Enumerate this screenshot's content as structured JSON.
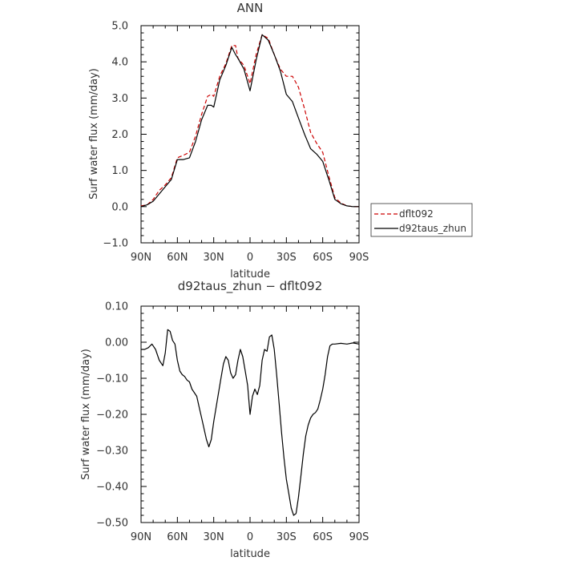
{
  "chart_data": [
    {
      "type": "line",
      "title": "ANN",
      "xlabel": "latitude",
      "ylabel": "Surf water flux (mm/day)",
      "x_ticks": [
        "90N",
        "60N",
        "30N",
        "0",
        "30S",
        "60S",
        "90S"
      ],
      "y_ticks": [
        "5.0",
        "4.0",
        "3.0",
        "2.0",
        "1.0",
        "0.0",
        "−1.0"
      ],
      "xlim": [
        90,
        -90
      ],
      "ylim": [
        -1.0,
        5.0
      ],
      "grid": false,
      "legend_position": "outside-right",
      "series": [
        {
          "name": "dflt092",
          "color": "#cc0000",
          "style": "dashed",
          "x": [
            90,
            85,
            80,
            75,
            70,
            65,
            60,
            55,
            50,
            45,
            40,
            35,
            32,
            30,
            25,
            20,
            15,
            12,
            10,
            5,
            0,
            -5,
            -10,
            -15,
            -20,
            -25,
            -30,
            -35,
            -40,
            -45,
            -50,
            -55,
            -60,
            -65,
            -70,
            -75,
            -80,
            -85,
            -90
          ],
          "values": [
            0.02,
            0.05,
            0.2,
            0.45,
            0.6,
            0.8,
            1.35,
            1.42,
            1.5,
            1.95,
            2.55,
            3.05,
            3.1,
            3.05,
            3.6,
            3.95,
            4.45,
            4.45,
            4.1,
            3.9,
            3.4,
            4.2,
            4.75,
            4.65,
            4.2,
            3.8,
            3.6,
            3.6,
            3.3,
            2.7,
            2.05,
            1.75,
            1.5,
            0.85,
            0.25,
            0.1,
            0.02,
            0.0,
            0.0
          ]
        },
        {
          "name": "d92taus_zhun",
          "color": "#000000",
          "style": "solid",
          "x": [
            90,
            85,
            80,
            75,
            70,
            65,
            60,
            55,
            50,
            45,
            40,
            35,
            32,
            30,
            25,
            20,
            15,
            12,
            10,
            5,
            0,
            -5,
            -10,
            -15,
            -20,
            -25,
            -30,
            -35,
            -40,
            -45,
            -50,
            -55,
            -60,
            -65,
            -70,
            -75,
            -80,
            -85,
            -90
          ],
          "values": [
            0.0,
            0.05,
            0.15,
            0.35,
            0.55,
            0.75,
            1.3,
            1.3,
            1.35,
            1.8,
            2.4,
            2.8,
            2.8,
            2.75,
            3.5,
            3.9,
            4.4,
            4.2,
            4.1,
            3.8,
            3.2,
            4.05,
            4.75,
            4.6,
            4.2,
            3.75,
            3.1,
            2.9,
            2.45,
            2.0,
            1.6,
            1.45,
            1.25,
            0.75,
            0.2,
            0.08,
            0.02,
            0.0,
            0.0
          ]
        }
      ]
    },
    {
      "type": "line",
      "title": "d92taus_zhun − dflt092",
      "xlabel": "latitude",
      "ylabel": "Surf water flux (mm/day)",
      "x_ticks": [
        "90N",
        "60N",
        "30N",
        "0",
        "30S",
        "60S",
        "90S"
      ],
      "y_ticks": [
        "0.10",
        "0.00",
        "−0.10",
        "−0.20",
        "−0.30",
        "−0.40",
        "−0.50"
      ],
      "xlim": [
        90,
        -90
      ],
      "ylim": [
        -0.5,
        0.1
      ],
      "grid": false,
      "series": [
        {
          "color": "#000000",
          "style": "solid",
          "x": [
            90,
            87,
            84,
            81,
            78,
            75,
            72,
            70,
            68,
            66,
            64,
            62,
            60,
            58,
            56,
            54,
            52,
            50,
            48,
            46,
            44,
            42,
            40,
            38,
            36,
            34,
            32,
            30,
            28,
            26,
            24,
            22,
            20,
            18,
            16,
            14,
            12,
            10,
            8,
            6,
            4,
            2,
            0,
            -2,
            -4,
            -6,
            -8,
            -10,
            -12,
            -14,
            -16,
            -18,
            -20,
            -22,
            -24,
            -26,
            -28,
            -30,
            -32,
            -34,
            -36,
            -38,
            -40,
            -42,
            -44,
            -46,
            -48,
            -50,
            -52,
            -54,
            -56,
            -58,
            -60,
            -62,
            -64,
            -66,
            -68,
            -70,
            -75,
            -80,
            -85,
            -90
          ],
          "values": [
            -0.02,
            -0.02,
            -0.015,
            -0.005,
            -0.02,
            -0.05,
            -0.065,
            -0.03,
            0.035,
            0.03,
            0.005,
            -0.005,
            -0.05,
            -0.08,
            -0.09,
            -0.095,
            -0.105,
            -0.11,
            -0.13,
            -0.14,
            -0.15,
            -0.18,
            -0.21,
            -0.24,
            -0.27,
            -0.29,
            -0.27,
            -0.22,
            -0.18,
            -0.14,
            -0.1,
            -0.06,
            -0.04,
            -0.05,
            -0.085,
            -0.1,
            -0.09,
            -0.05,
            -0.02,
            -0.04,
            -0.08,
            -0.12,
            -0.2,
            -0.15,
            -0.13,
            -0.145,
            -0.12,
            -0.05,
            -0.02,
            -0.025,
            0.015,
            0.02,
            -0.02,
            -0.09,
            -0.17,
            -0.25,
            -0.32,
            -0.38,
            -0.42,
            -0.46,
            -0.48,
            -0.475,
            -0.43,
            -0.37,
            -0.31,
            -0.26,
            -0.23,
            -0.21,
            -0.2,
            -0.195,
            -0.185,
            -0.16,
            -0.13,
            -0.09,
            -0.04,
            -0.01,
            -0.005,
            -0.005,
            -0.003,
            -0.005,
            -0.002,
            -0.005
          ]
        }
      ]
    }
  ]
}
